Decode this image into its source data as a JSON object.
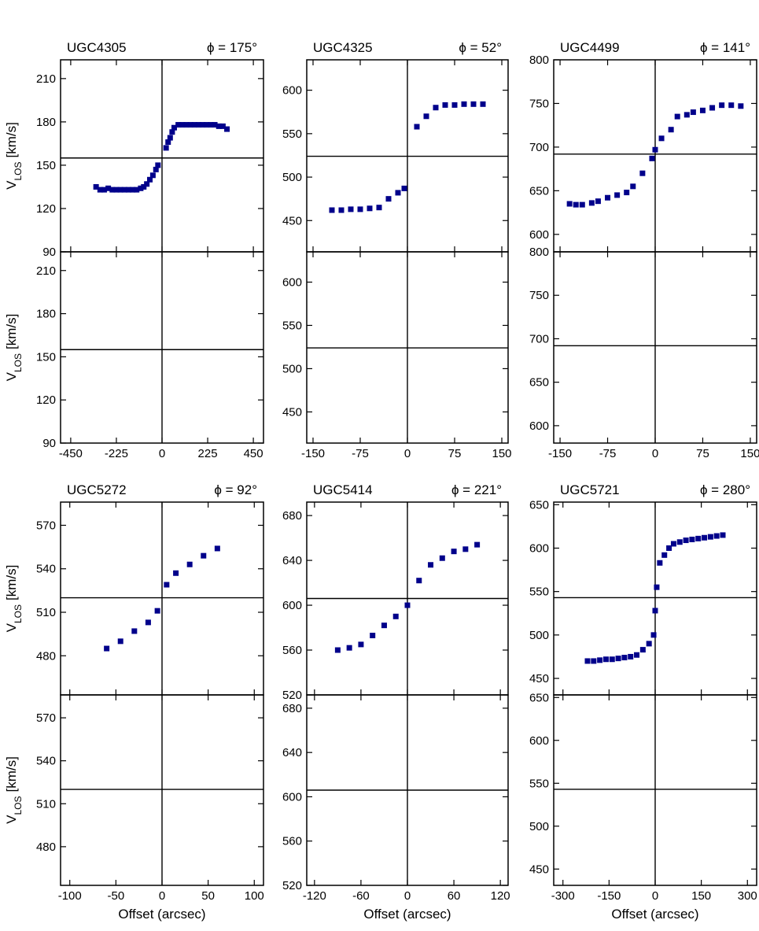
{
  "chart_data": [
    {
      "type": "scatter",
      "title": "UGC4305",
      "subtitle": "ϕ = 175°",
      "ylabel": [
        "V",
        "LOS",
        "[km/s]"
      ],
      "xlim": [
        -500,
        500
      ],
      "xticks": [
        -450,
        -225,
        0,
        225,
        450
      ],
      "ylim": [
        90,
        223
      ],
      "yticks": [
        90,
        120,
        150,
        180,
        210
      ],
      "vsys": 155,
      "color": "#00008b",
      "x": [
        -325,
        -305,
        -285,
        -265,
        -245,
        -225,
        -205,
        -185,
        -165,
        -145,
        -125,
        -105,
        -90,
        -75,
        -60,
        -45,
        -30,
        -20,
        20,
        30,
        40,
        50,
        60,
        80,
        100,
        120,
        140,
        160,
        180,
        200,
        220,
        240,
        260,
        280,
        300,
        320
      ],
      "values": [
        135,
        133,
        133,
        134,
        133,
        133,
        133,
        133,
        133,
        133,
        133,
        134,
        135,
        137,
        140,
        143,
        147,
        150,
        162,
        166,
        169,
        173,
        176,
        178,
        178,
        178,
        178,
        178,
        178,
        178,
        178,
        178,
        178,
        177,
        177,
        175
      ]
    },
    {
      "type": "scatter",
      "title": "UGC4325",
      "subtitle": "ϕ = 52°",
      "xlim": [
        -160,
        160
      ],
      "xticks": [
        -150,
        -75,
        0,
        75,
        150
      ],
      "ylim": [
        414,
        635
      ],
      "yticks": [
        450,
        500,
        550,
        600
      ],
      "vsys": 524,
      "color": "#00008b",
      "x": [
        -120,
        -105,
        -90,
        -75,
        -60,
        -45,
        -30,
        -15,
        -5,
        15,
        30,
        45,
        60,
        75,
        90,
        105,
        120
      ],
      "values": [
        462,
        462,
        463,
        463,
        464,
        465,
        475,
        482,
        487,
        558,
        570,
        580,
        583,
        583,
        584,
        584,
        584
      ]
    },
    {
      "type": "scatter",
      "title": "UGC4499",
      "subtitle": "ϕ = 141°",
      "xlim": [
        -160,
        160
      ],
      "xticks": [
        -150,
        -75,
        0,
        75,
        150
      ],
      "ylim": [
        580,
        800
      ],
      "yticks": [
        600,
        650,
        700,
        750,
        800
      ],
      "vsys": 692,
      "color": "#00008b",
      "x": [
        -135,
        -125,
        -115,
        -100,
        -90,
        -75,
        -60,
        -45,
        -35,
        -20,
        -5,
        0,
        10,
        25,
        35,
        50,
        60,
        75,
        90,
        105,
        120,
        135
      ],
      "values": [
        635,
        634,
        634,
        636,
        638,
        642,
        645,
        648,
        655,
        670,
        687,
        697,
        710,
        720,
        735,
        737,
        740,
        742,
        745,
        748,
        748,
        747
      ]
    },
    {
      "type": "scatter",
      "title": "UGC5272",
      "subtitle": "ϕ = 92°",
      "ylabel": [
        "V",
        "LOS",
        "[km/s]"
      ],
      "xlabel": "Offset (arcsec)",
      "xlim": [
        -110,
        110
      ],
      "xticks": [
        -100,
        -50,
        0,
        50,
        100
      ],
      "ylim": [
        453,
        586
      ],
      "yticks": [
        480,
        510,
        540,
        570
      ],
      "vsys": 520,
      "color": "#00008b",
      "x": [
        -60,
        -45,
        -30,
        -15,
        -5,
        5,
        15,
        30,
        45,
        60
      ],
      "values": [
        485,
        490,
        497,
        503,
        511,
        529,
        537,
        543,
        549,
        554
      ]
    },
    {
      "type": "scatter",
      "title": "UGC5414",
      "subtitle": "ϕ = 221°",
      "xlabel": "Offset (arcsec)",
      "xlim": [
        -130,
        130
      ],
      "xticks": [
        -120,
        -60,
        0,
        60,
        120
      ],
      "ylim": [
        520,
        692
      ],
      "yticks": [
        520,
        560,
        600,
        640,
        680
      ],
      "vsys": 606,
      "color": "#00008b",
      "x": [
        -90,
        -75,
        -60,
        -45,
        -30,
        -15,
        0,
        15,
        30,
        45,
        60,
        75,
        90
      ],
      "values": [
        560,
        562,
        565,
        573,
        582,
        590,
        600,
        622,
        636,
        642,
        648,
        650,
        654
      ]
    },
    {
      "type": "scatter",
      "title": "UGC5721",
      "subtitle": "ϕ = 280°",
      "xlabel": "Offset (arcsec)",
      "xlim": [
        -330,
        330
      ],
      "xticks": [
        -300,
        -150,
        0,
        150,
        300
      ],
      "ylim": [
        431,
        653
      ],
      "yticks": [
        450,
        500,
        550,
        600,
        650
      ],
      "vsys": 543,
      "color": "#00008b",
      "x": [
        -220,
        -200,
        -180,
        -160,
        -140,
        -120,
        -100,
        -80,
        -60,
        -40,
        -20,
        -5,
        0,
        5,
        15,
        30,
        45,
        60,
        80,
        100,
        120,
        140,
        160,
        180,
        200,
        220
      ],
      "values": [
        470,
        470,
        471,
        472,
        472,
        473,
        474,
        475,
        477,
        483,
        490,
        500,
        528,
        555,
        583,
        592,
        600,
        605,
        607,
        609,
        610,
        611,
        612,
        613,
        614,
        615
      ]
    }
  ]
}
